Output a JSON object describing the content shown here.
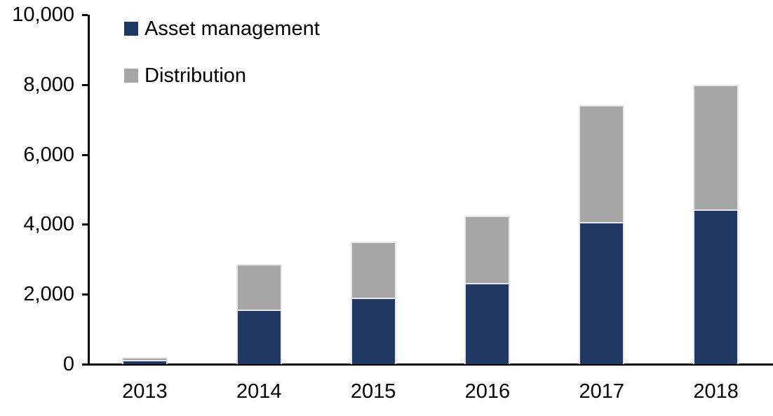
{
  "chart_data": {
    "type": "bar",
    "stacked": true,
    "title": "",
    "categories": [
      "2013",
      "2014",
      "2015",
      "2016",
      "2017",
      "2018"
    ],
    "series": [
      {
        "name": "Asset management",
        "color": "#1F3864",
        "values": [
          100,
          1550,
          1890,
          2310,
          4050,
          4420
        ]
      },
      {
        "name": "Distribution",
        "color": "#A6A6A6",
        "values": [
          100,
          1310,
          1620,
          1940,
          3360,
          3580
        ]
      }
    ],
    "totals": [
      200,
      2860,
      3510,
      4250,
      7410,
      8000
    ],
    "ylim": [
      0,
      10000
    ],
    "yticks": [
      {
        "value": 0,
        "label": "0"
      },
      {
        "value": 2000,
        "label": "2,000"
      },
      {
        "value": 4000,
        "label": "4,000"
      },
      {
        "value": 6000,
        "label": "6,000"
      },
      {
        "value": 8000,
        "label": "8,000"
      },
      {
        "value": 10000,
        "label": "10,000"
      }
    ],
    "xlabel": "",
    "ylabel": "",
    "grid": false,
    "legend_position": "top-left-inside"
  },
  "colors": {
    "axis": "#000000",
    "background": "#FFFFFF",
    "bar_border": "#E8E8E8",
    "asset_management": "#1F3864",
    "distribution": "#A6A6A6"
  }
}
